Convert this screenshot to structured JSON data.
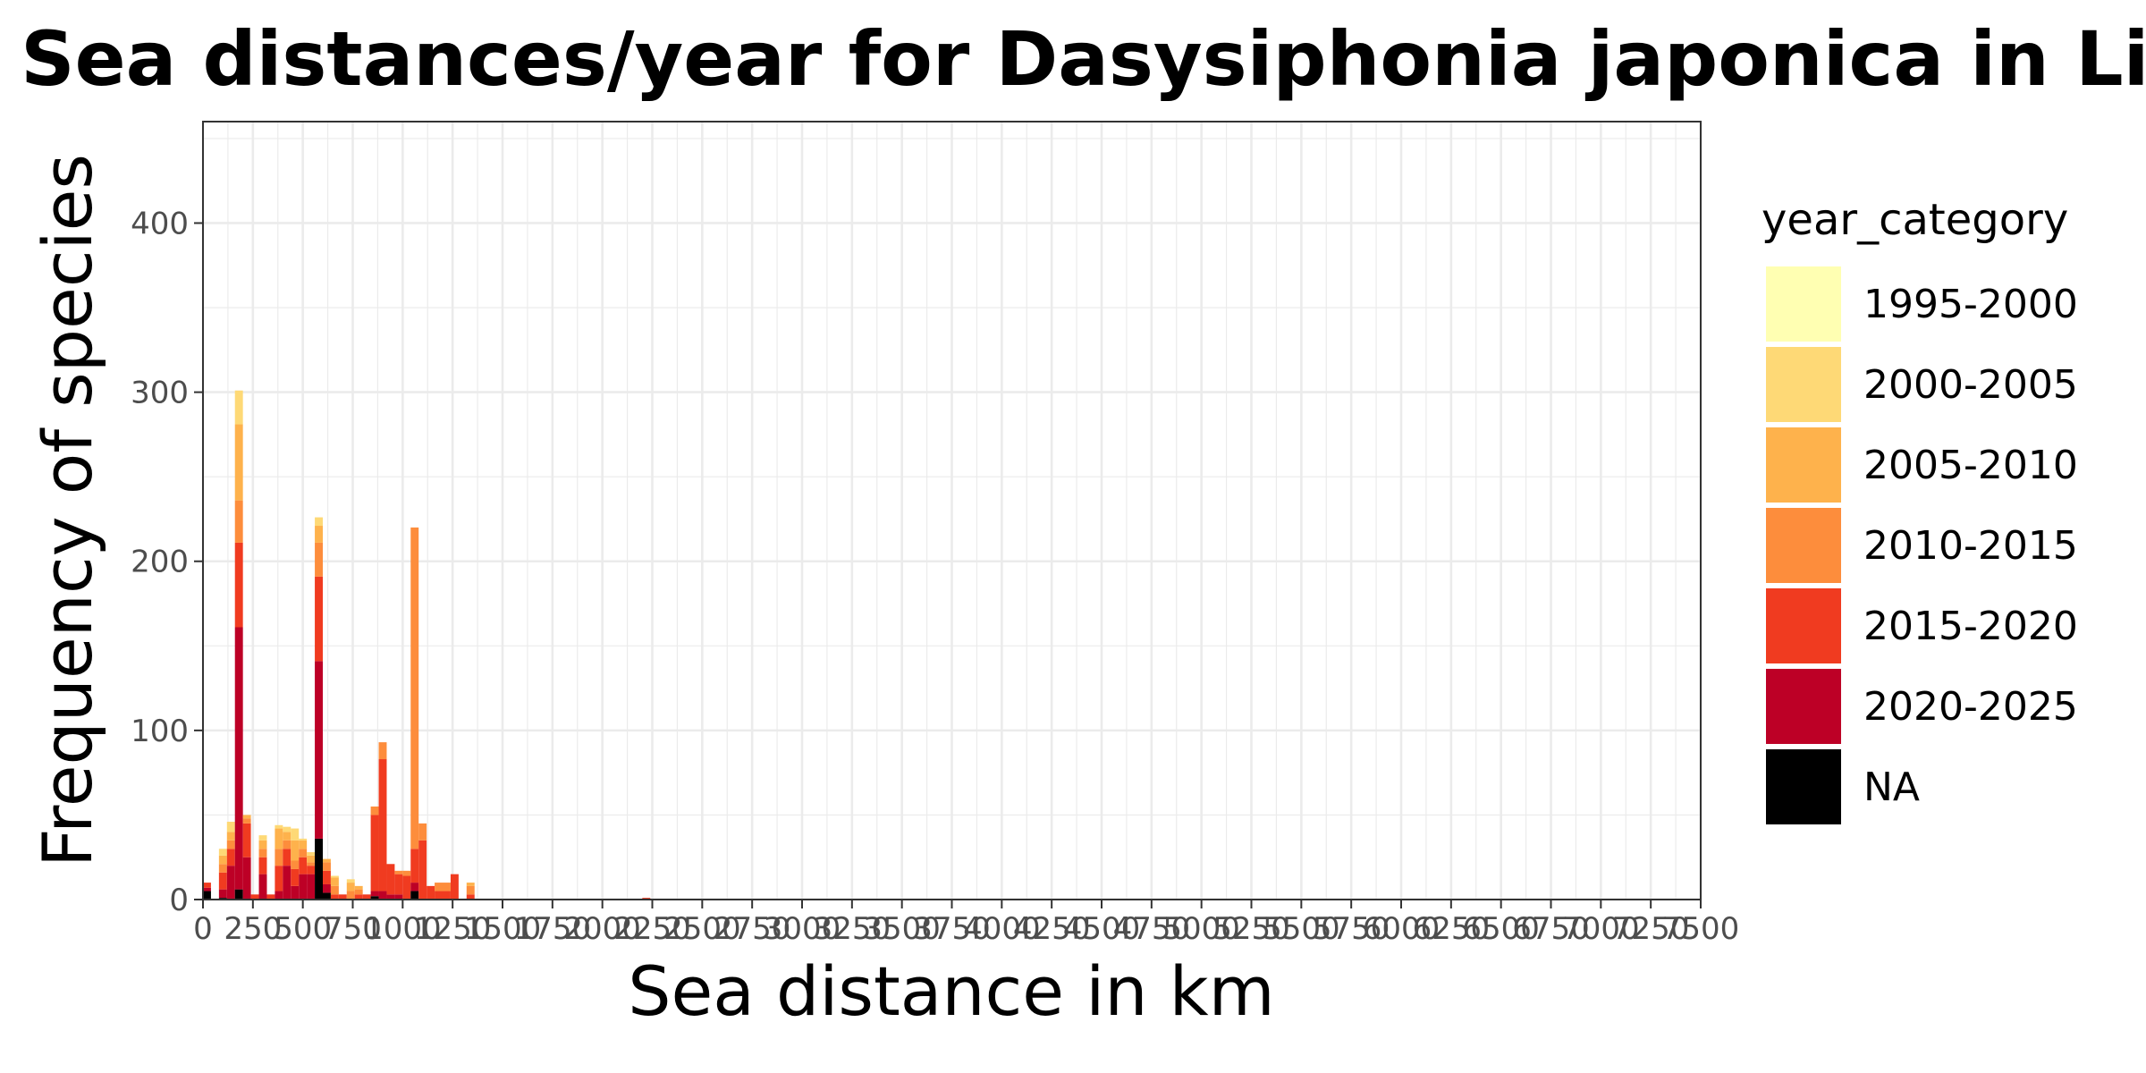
{
  "chart_data": {
    "type": "bar",
    "stacked": true,
    "title": "Frequencies of Sea distances/year for Dasysiphonia japonica in Limfjorden",
    "xlabel": "Sea distance in km",
    "ylabel": "Frequency of species",
    "xlim": [
      0,
      7500
    ],
    "ylim": [
      0,
      460
    ],
    "x_ticks": [
      0,
      250,
      500,
      750,
      1000,
      1250,
      1500,
      1750,
      2000,
      2250,
      2500,
      2750,
      3000,
      3250,
      3500,
      3750,
      4000,
      4250,
      4500,
      4750,
      5000,
      5250,
      5500,
      5750,
      6000,
      6250,
      6500,
      6750,
      7000,
      7250,
      7500
    ],
    "x_tick_labels": [
      "0",
      "250",
      "500",
      "750",
      "1000",
      "1250",
      "1500",
      "1750",
      "2000",
      "2250",
      "2500",
      "2750",
      "3000",
      "3250",
      "3500",
      "3750",
      "4000",
      "4250",
      "4500",
      "4750",
      "5000",
      "5250",
      "5500",
      "5750",
      "6000",
      "6250",
      "6500",
      "6750",
      "7000",
      "7250",
      "7500"
    ],
    "y_ticks": [
      0,
      100,
      200,
      300,
      400
    ],
    "y_tick_labels": [
      "0",
      "100",
      "200",
      "300",
      "400"
    ],
    "grid": true,
    "legend_position": "right",
    "legend_title": "year_category",
    "bin_width": 40,
    "categories": [
      "1995-2000",
      "2000-2005",
      "2005-2010",
      "2010-2015",
      "2015-2020",
      "2020-2025",
      "NA"
    ],
    "colors": [
      "#ffffb2",
      "#fed976",
      "#feb24c",
      "#fd8d3c",
      "#f03b20",
      "#bd0026",
      "#000000"
    ],
    "bins": [
      {
        "x": 20,
        "values": [
          0,
          0,
          0,
          0,
          3,
          2,
          5
        ]
      },
      {
        "x": 60,
        "values": [
          0,
          0,
          0,
          0,
          0,
          0,
          0
        ]
      },
      {
        "x": 100,
        "values": [
          0,
          4,
          5,
          5,
          10,
          5,
          1
        ]
      },
      {
        "x": 140,
        "values": [
          0,
          6,
          5,
          5,
          10,
          20,
          0
        ]
      },
      {
        "x": 180,
        "values": [
          0,
          20,
          45,
          25,
          50,
          155,
          6
        ]
      },
      {
        "x": 220,
        "values": [
          0,
          0,
          2,
          3,
          20,
          25,
          0
        ]
      },
      {
        "x": 260,
        "values": [
          0,
          0,
          0,
          0,
          3,
          0,
          0
        ]
      },
      {
        "x": 300,
        "values": [
          0,
          3,
          5,
          5,
          10,
          15,
          0
        ]
      },
      {
        "x": 340,
        "values": [
          0,
          0,
          0,
          0,
          3,
          0,
          0
        ]
      },
      {
        "x": 380,
        "values": [
          0,
          2,
          12,
          10,
          15,
          5,
          0
        ]
      },
      {
        "x": 420,
        "values": [
          0,
          3,
          5,
          5,
          10,
          20,
          0
        ]
      },
      {
        "x": 460,
        "values": [
          0,
          7,
          12,
          5,
          10,
          8,
          0
        ]
      },
      {
        "x": 500,
        "values": [
          0,
          1,
          5,
          5,
          10,
          15,
          0
        ]
      },
      {
        "x": 540,
        "values": [
          0,
          2,
          4,
          2,
          5,
          15,
          0
        ]
      },
      {
        "x": 580,
        "values": [
          0,
          5,
          10,
          20,
          50,
          105,
          36
        ]
      },
      {
        "x": 620,
        "values": [
          0,
          0,
          2,
          5,
          8,
          5,
          4
        ]
      },
      {
        "x": 660,
        "values": [
          0,
          1,
          5,
          5,
          3,
          0,
          0
        ]
      },
      {
        "x": 700,
        "values": [
          0,
          0,
          0,
          0,
          3,
          0,
          0
        ]
      },
      {
        "x": 740,
        "values": [
          0,
          2,
          5,
          5,
          0,
          0,
          0
        ]
      },
      {
        "x": 780,
        "values": [
          0,
          0,
          2,
          3,
          3,
          0,
          0
        ]
      },
      {
        "x": 820,
        "values": [
          0,
          0,
          0,
          0,
          3,
          0,
          0
        ]
      },
      {
        "x": 860,
        "values": [
          0,
          0,
          0,
          5,
          45,
          3,
          2
        ]
      },
      {
        "x": 900,
        "values": [
          0,
          0,
          0,
          10,
          78,
          5,
          0
        ]
      },
      {
        "x": 940,
        "values": [
          0,
          0,
          0,
          0,
          18,
          3,
          0
        ]
      },
      {
        "x": 980,
        "values": [
          0,
          0,
          0,
          2,
          12,
          3,
          0
        ]
      },
      {
        "x": 1020,
        "values": [
          0,
          0,
          0,
          3,
          14,
          0,
          0
        ]
      },
      {
        "x": 1060,
        "values": [
          0,
          0,
          0,
          190,
          20,
          5,
          5
        ]
      },
      {
        "x": 1100,
        "values": [
          0,
          0,
          0,
          10,
          35,
          0,
          0
        ]
      },
      {
        "x": 1140,
        "values": [
          0,
          0,
          0,
          0,
          8,
          0,
          0
        ]
      },
      {
        "x": 1180,
        "values": [
          0,
          0,
          0,
          5,
          5,
          0,
          0
        ]
      },
      {
        "x": 1220,
        "values": [
          0,
          0,
          0,
          5,
          5,
          0,
          0
        ]
      },
      {
        "x": 1260,
        "values": [
          0,
          0,
          0,
          0,
          15,
          0,
          0
        ]
      },
      {
        "x": 1300,
        "values": [
          0,
          0,
          0,
          0,
          0,
          0,
          0
        ]
      },
      {
        "x": 1340,
        "values": [
          0,
          0,
          2,
          5,
          3,
          0,
          0
        ]
      },
      {
        "x": 1380,
        "values": [
          0,
          0,
          0,
          0,
          0,
          0,
          0
        ]
      },
      {
        "x": 1420,
        "values": [
          0,
          0,
          0,
          0,
          0,
          0,
          0
        ]
      },
      {
        "x": 1460,
        "values": [
          0,
          0,
          0,
          0,
          0,
          0,
          0
        ]
      },
      {
        "x": 1500,
        "values": [
          0,
          0,
          0,
          0,
          0,
          0,
          0
        ]
      },
      {
        "x": 1540,
        "values": [
          0,
          0,
          0,
          0,
          0,
          0,
          0
        ]
      },
      {
        "x": 1580,
        "values": [
          0,
          0,
          0,
          0,
          0,
          0,
          0
        ]
      },
      {
        "x": 1620,
        "values": [
          0,
          0,
          0,
          0,
          0,
          0,
          0
        ]
      },
      {
        "x": 1660,
        "values": [
          0,
          0,
          0,
          0,
          0,
          0,
          0
        ]
      },
      {
        "x": 1700,
        "values": [
          0,
          0,
          0,
          0,
          0,
          0,
          0
        ]
      },
      {
        "x": 1740,
        "values": [
          0,
          0,
          0,
          0,
          0,
          0,
          0
        ]
      },
      {
        "x": 1780,
        "values": [
          0,
          0,
          0,
          0,
          0,
          0,
          0
        ]
      },
      {
        "x": 1820,
        "values": [
          0,
          0,
          0,
          0,
          0,
          0,
          0
        ]
      },
      {
        "x": 1860,
        "values": [
          0,
          0,
          0,
          0,
          0,
          0,
          0
        ]
      },
      {
        "x": 1900,
        "values": [
          0,
          0,
          0,
          0,
          0,
          0,
          0
        ]
      },
      {
        "x": 1940,
        "values": [
          0,
          0,
          0,
          0,
          0,
          0,
          0
        ]
      },
      {
        "x": 1980,
        "values": [
          0,
          0,
          0,
          0,
          0,
          0,
          0
        ]
      },
      {
        "x": 2020,
        "values": [
          0,
          0,
          0,
          0,
          0,
          0,
          0
        ]
      },
      {
        "x": 2060,
        "values": [
          0,
          0,
          0,
          0,
          0,
          0,
          0
        ]
      },
      {
        "x": 2100,
        "values": [
          0,
          0,
          0,
          0,
          0,
          0,
          0
        ]
      },
      {
        "x": 2140,
        "values": [
          0,
          0,
          0,
          0,
          0,
          0,
          0
        ]
      },
      {
        "x": 2180,
        "values": [
          0,
          0,
          0,
          0,
          0,
          0,
          0
        ]
      },
      {
        "x": 2220,
        "values": [
          0,
          0,
          0,
          0,
          1,
          0,
          0
        ]
      }
    ]
  }
}
